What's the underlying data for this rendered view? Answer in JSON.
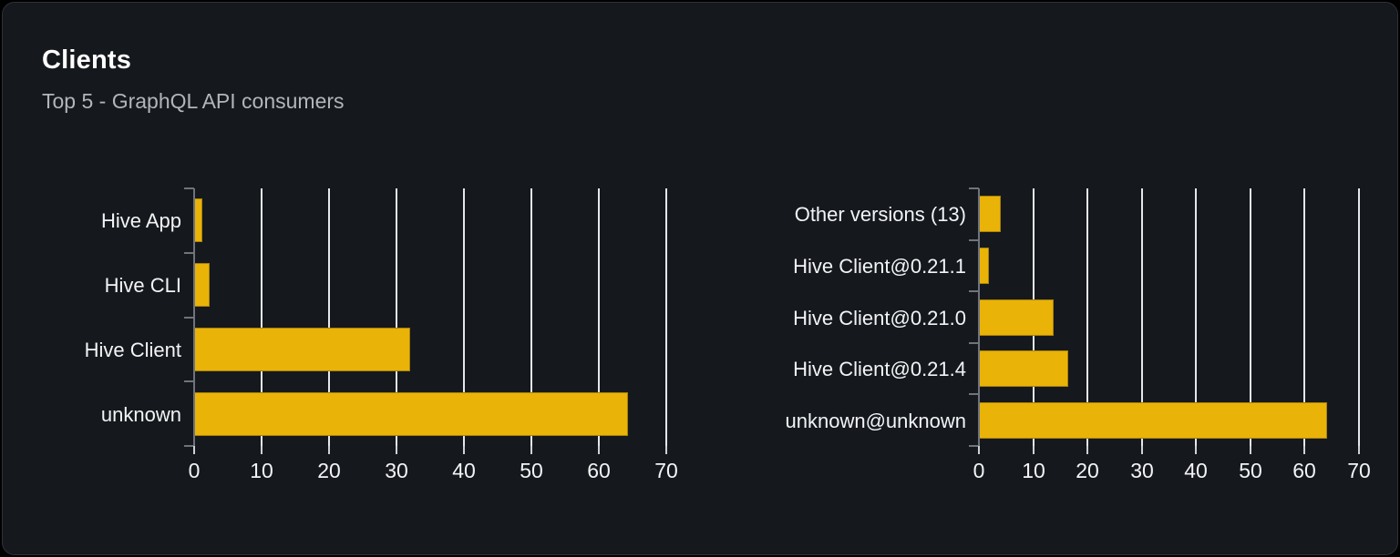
{
  "card": {
    "title": "Clients",
    "subtitle": "Top 5 - GraphQL API consumers"
  },
  "chart_data": [
    {
      "type": "bar",
      "orientation": "horizontal",
      "title": "",
      "xlabel": "",
      "ylabel": "",
      "categories": [
        "Hive App",
        "Hive CLI",
        "Hive Client",
        "unknown"
      ],
      "values": [
        1.2,
        2.3,
        32,
        64.3
      ],
      "xlim": [
        0,
        70
      ],
      "xticks": [
        0,
        10,
        20,
        30,
        40,
        50,
        60,
        70
      ],
      "grid": true,
      "legend": false
    },
    {
      "type": "bar",
      "orientation": "horizontal",
      "title": "",
      "xlabel": "",
      "ylabel": "",
      "categories": [
        "Other versions (13)",
        "Hive Client@0.21.1",
        "Hive Client@0.21.0",
        "Hive Client@0.21.4",
        "unknown@unknown"
      ],
      "values": [
        4.0,
        1.8,
        13.8,
        16.5,
        64.2
      ],
      "xlim": [
        0,
        70
      ],
      "xticks": [
        0,
        10,
        20,
        30,
        40,
        50,
        60,
        70
      ],
      "grid": true,
      "legend": false
    }
  ],
  "colors": {
    "page_bg": "#000000",
    "card_bg": "#15181d",
    "card_border": "#2d3138",
    "title_text": "#ffffff",
    "subtitle_text": "#b2b6bc",
    "bar": "#e9b308",
    "gridline": "#e4e7eb",
    "axis": "#6f747c",
    "tick_stub": "#ced2d8",
    "label_text": "#f2f4f6"
  }
}
